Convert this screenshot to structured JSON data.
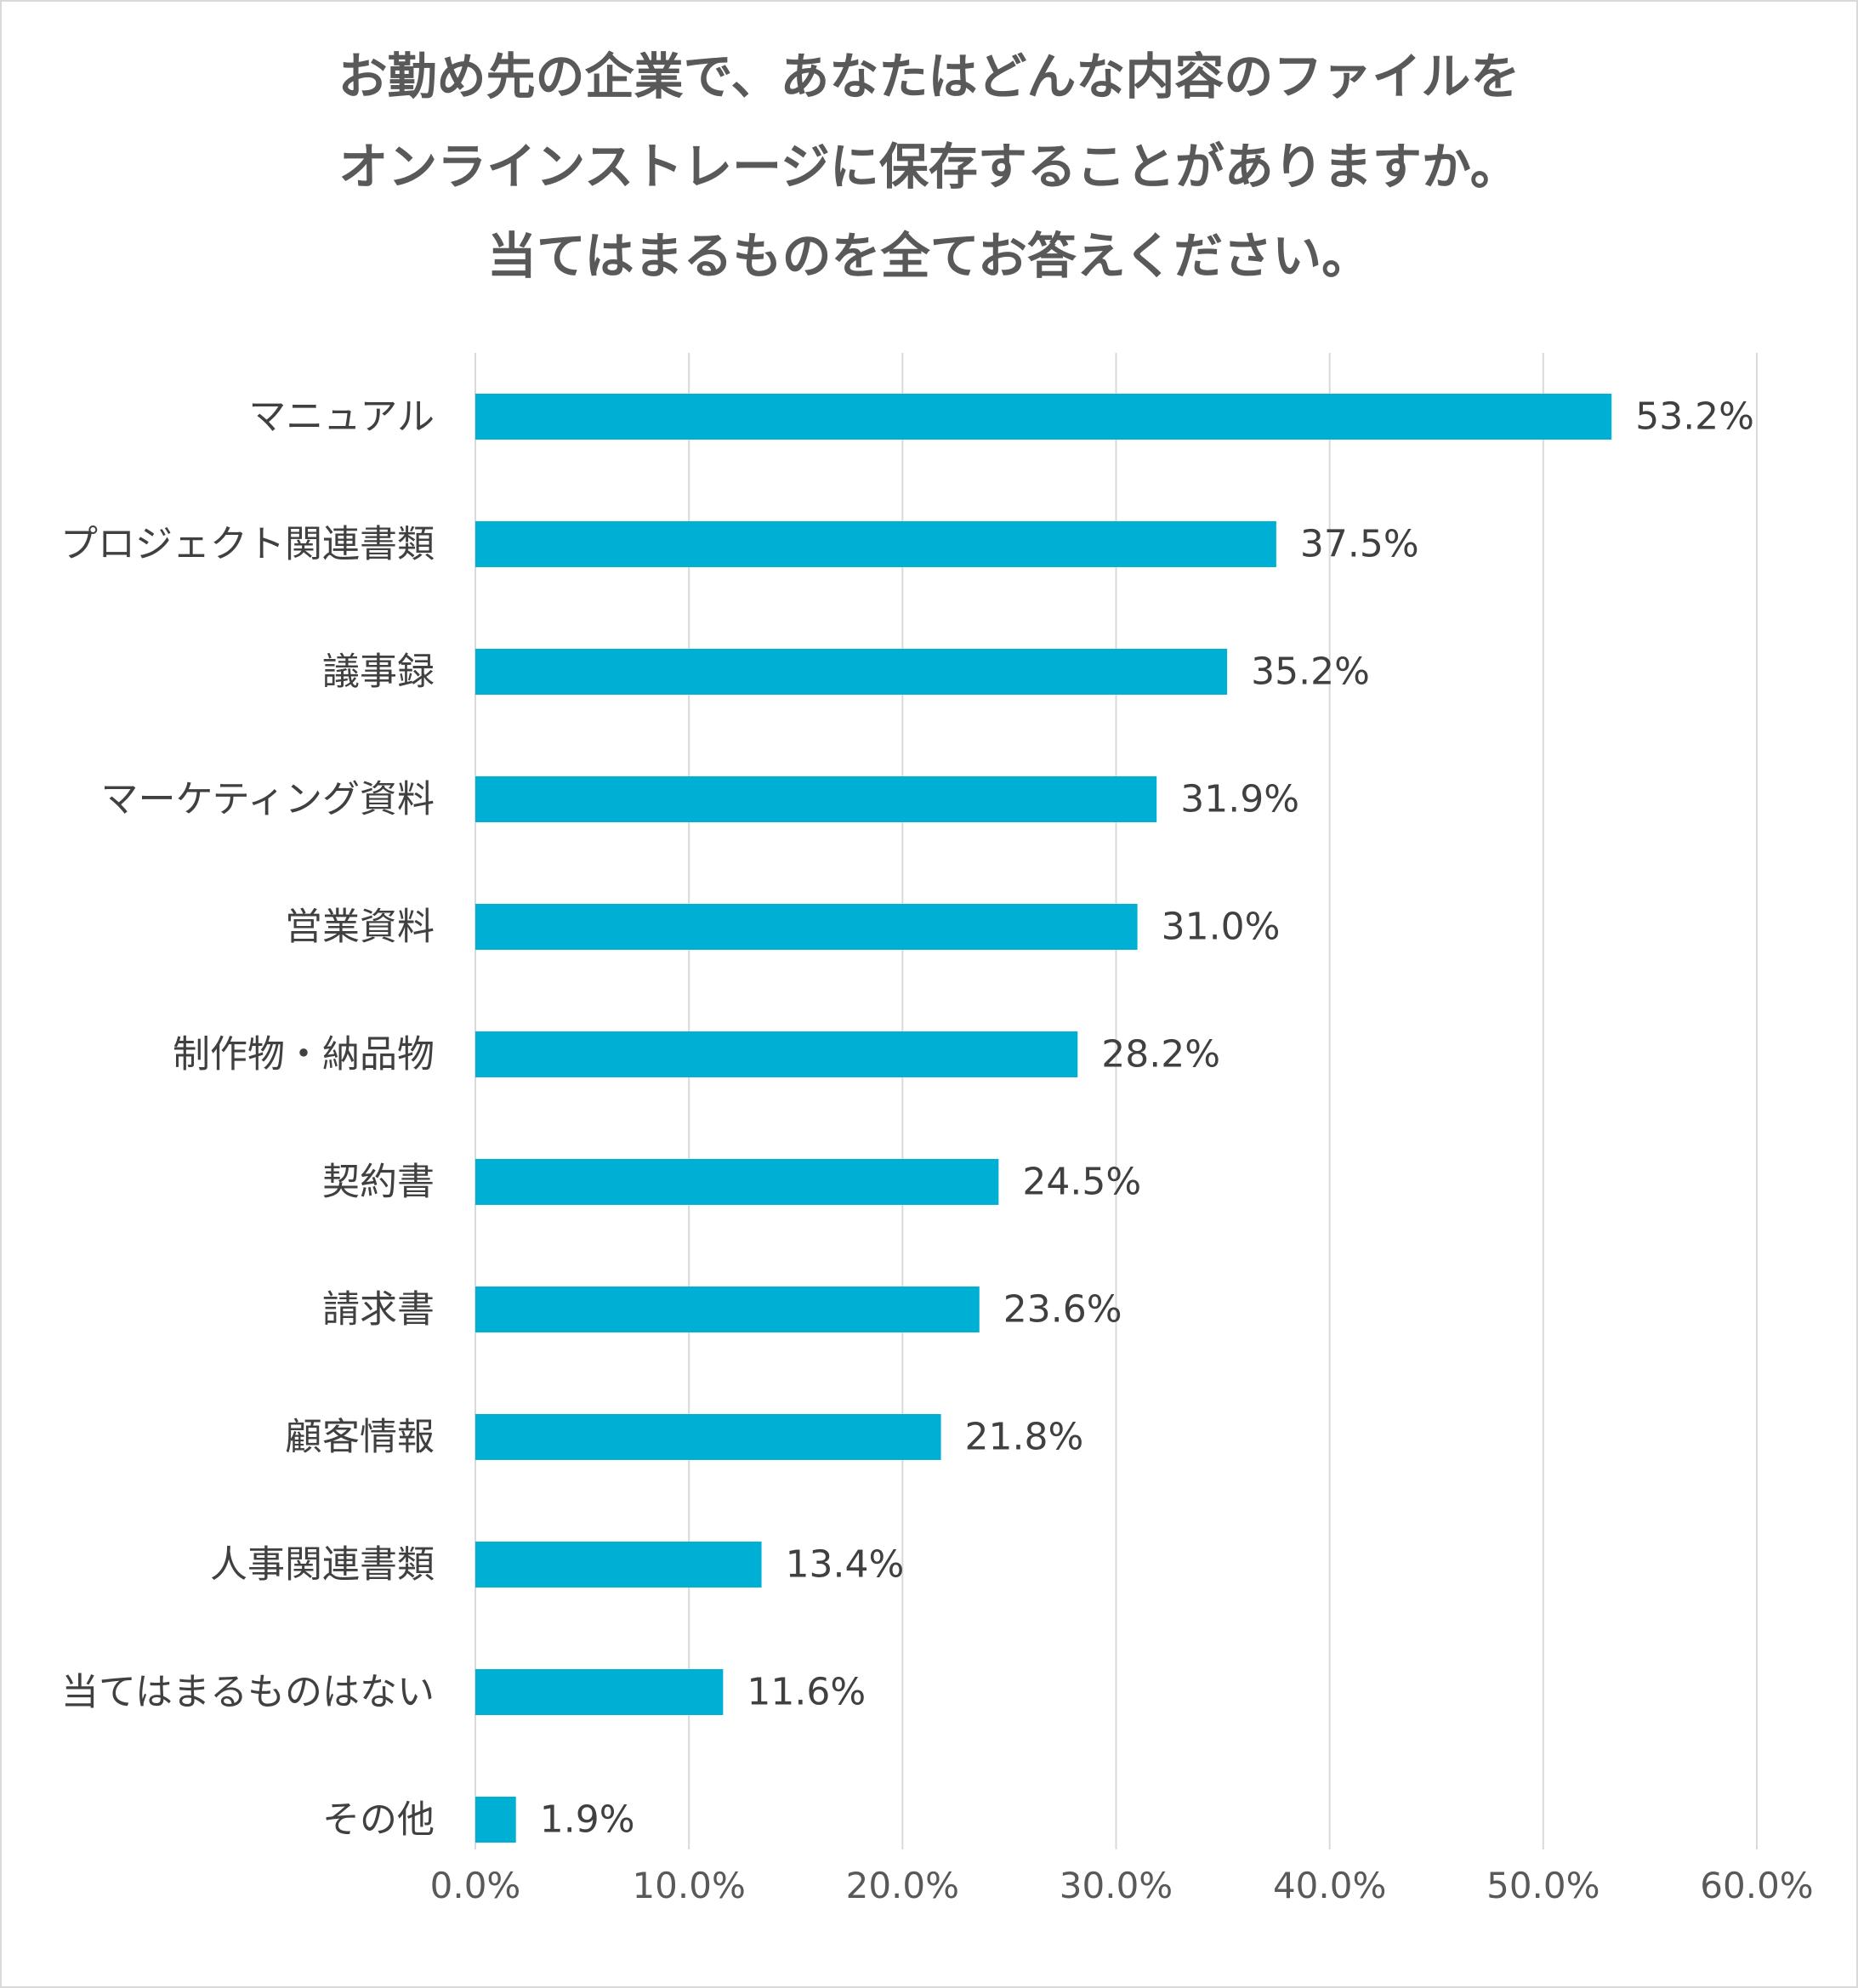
{
  "chart_data": {
    "type": "bar",
    "orientation": "horizontal",
    "title_lines": [
      "お勤め先の企業で、あなたはどんな内容のファイルを",
      "オンラインストレージに保存することがありますか。",
      "当てはまるものを全てお答えください。"
    ],
    "categories": [
      "マニュアル",
      "プロジェクト関連書類",
      "議事録",
      "マーケティング資料",
      "営業資料",
      "制作物・納品物",
      "契約書",
      "請求書",
      "顧客情報",
      "人事関連書類",
      "当てはまるものはない",
      "その他"
    ],
    "values": [
      53.2,
      37.5,
      35.2,
      31.9,
      31.0,
      28.2,
      24.5,
      23.6,
      21.8,
      13.4,
      11.6,
      1.9
    ],
    "value_labels": [
      "53.2%",
      "37.5%",
      "35.2%",
      "31.9%",
      "31.0%",
      "28.2%",
      "24.5%",
      "23.6%",
      "21.8%",
      "13.4%",
      "11.6%",
      "1.9%"
    ],
    "xlim": [
      0,
      60
    ],
    "x_ticks": [
      0,
      10,
      20,
      30,
      40,
      50,
      60
    ],
    "x_tick_labels": [
      "0.0%",
      "10.0%",
      "20.0%",
      "30.0%",
      "40.0%",
      "50.0%",
      "60.0%"
    ],
    "grid": true,
    "legend": "none",
    "colors": {
      "bar": "#00b0d4",
      "grid": "#d9d9d9",
      "title": "#595959",
      "text": "#404040"
    }
  }
}
